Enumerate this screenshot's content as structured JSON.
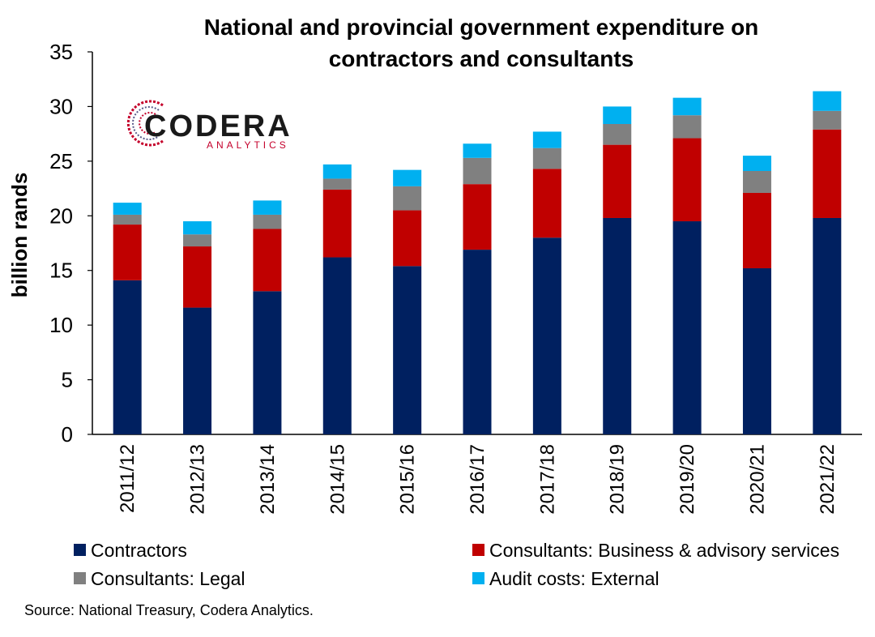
{
  "chart_data": {
    "type": "bar",
    "stacked": true,
    "title": [
      "National and provincial government expenditure on",
      "contractors and consultants"
    ],
    "ylabel": "billion rands",
    "xlabel": "",
    "ylim": [
      0,
      35
    ],
    "yticks": [
      0,
      5,
      10,
      15,
      20,
      25,
      30,
      35
    ],
    "grid": false,
    "legend_position": "bottom",
    "categories": [
      "2011/12",
      "2012/13",
      "2013/14",
      "2014/15",
      "2015/16",
      "2016/17",
      "2017/18",
      "2018/19",
      "2019/20",
      "2020/21",
      "2021/22"
    ],
    "series": [
      {
        "name": "Contractors",
        "color": "#002060",
        "values": [
          14.1,
          11.6,
          13.1,
          16.2,
          15.4,
          16.9,
          18.0,
          19.8,
          19.5,
          15.2,
          19.8
        ]
      },
      {
        "name": "Consultants: Business & advisory services",
        "color": "#c00000",
        "values": [
          5.1,
          5.6,
          5.7,
          6.2,
          5.1,
          6.0,
          6.3,
          6.7,
          7.6,
          6.9,
          8.1
        ]
      },
      {
        "name": "Consultants: Legal",
        "color": "#808080",
        "values": [
          0.9,
          1.1,
          1.3,
          1.0,
          2.2,
          2.4,
          1.9,
          1.9,
          2.1,
          2.0,
          1.7
        ]
      },
      {
        "name": "Audit costs: External",
        "color": "#00b0f0",
        "values": [
          1.1,
          1.2,
          1.3,
          1.3,
          1.5,
          1.3,
          1.5,
          1.6,
          1.6,
          1.4,
          1.8
        ]
      }
    ]
  },
  "source": "Source: National Treasury, Codera Analytics.",
  "logo": {
    "name": "CODERA",
    "subtitle": "ANALYTICS"
  }
}
